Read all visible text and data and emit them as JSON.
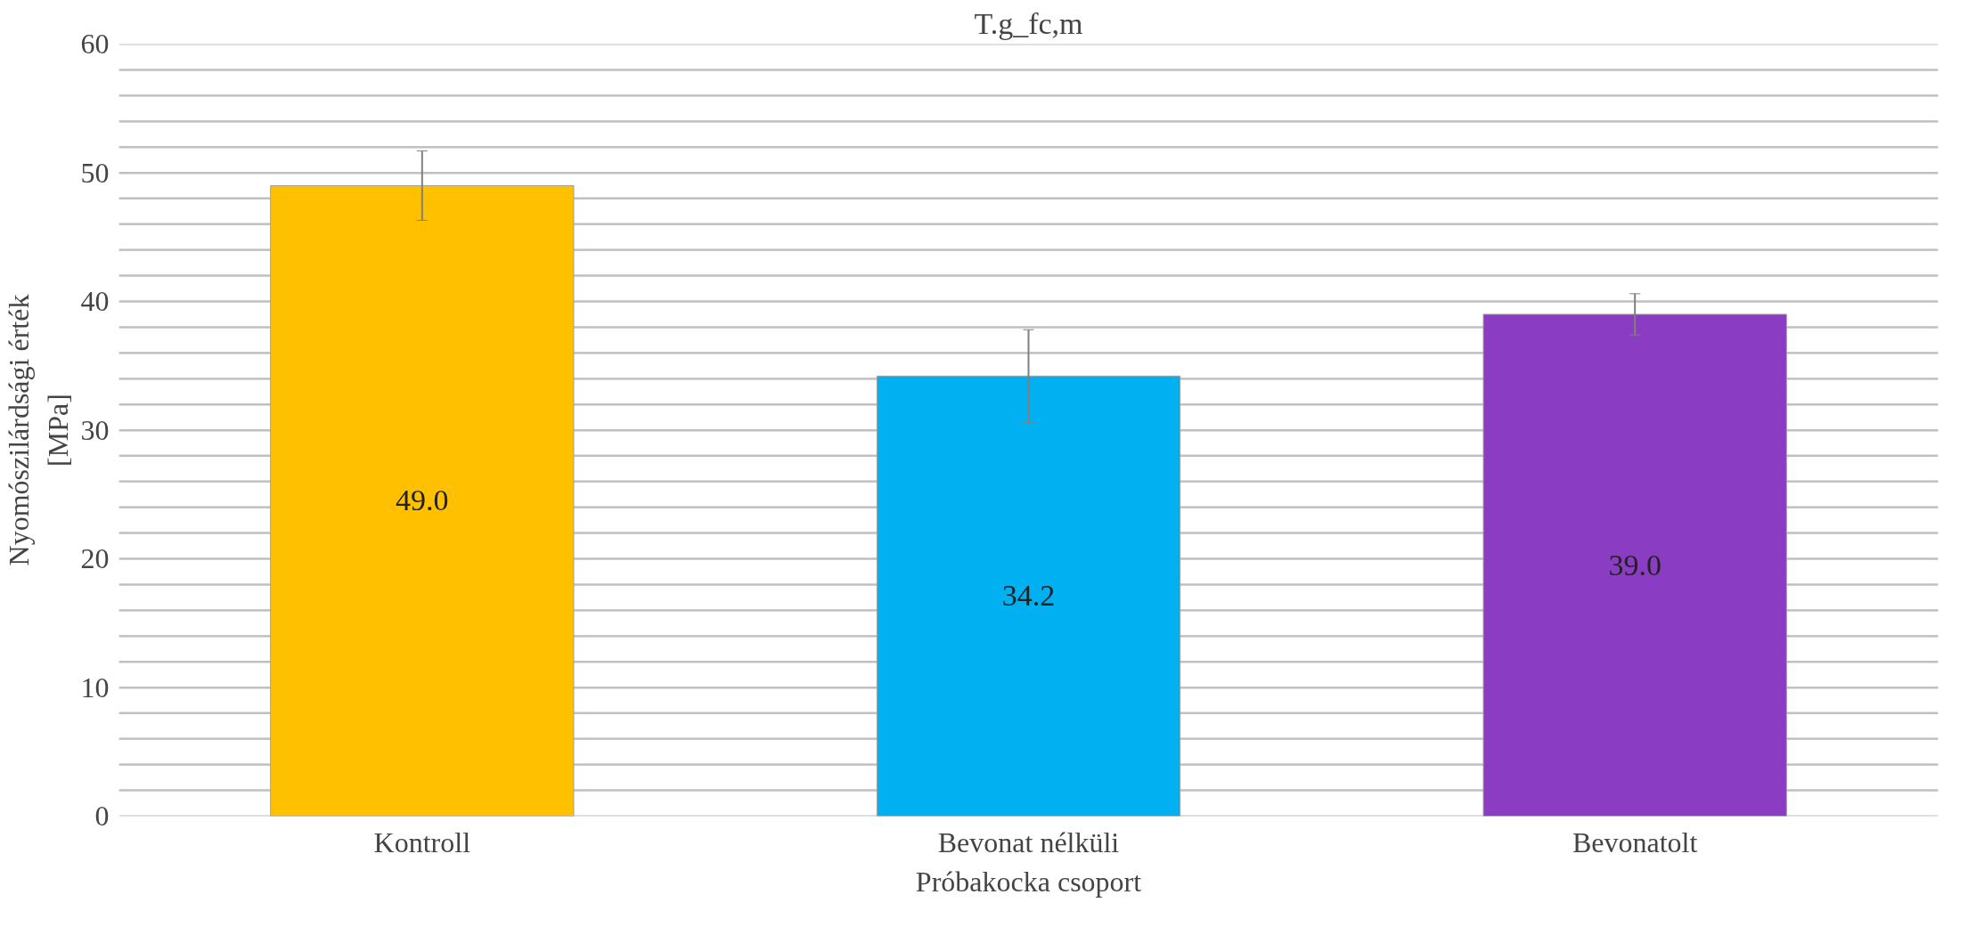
{
  "chart_data": {
    "type": "bar",
    "title": "T.g_fc,m",
    "xlabel": "Próbakocka csoport",
    "ylabel": "Nyomószilárdsági érték\n[MPa]",
    "categories": [
      "Kontroll",
      "Bevonat nélküli",
      "Bevonatolt"
    ],
    "values": [
      49.0,
      34.2,
      39.0
    ],
    "colors": [
      "#ffc000",
      "#00b0f0",
      "#8a3cc2"
    ],
    "errors": [
      2.7,
      3.6,
      1.6
    ],
    "value_labels": [
      "49.0",
      "34.2",
      "39.0"
    ],
    "ylim": [
      0,
      60
    ],
    "yticks": [
      0,
      {
        "value": 2,
        "label": null
      },
      {
        "value": 4,
        "label": null
      },
      {
        "value": 6,
        "label": null
      },
      {
        "value": 8,
        "label": null
      },
      10,
      {
        "value": 12,
        "label": null
      },
      {
        "value": 14,
        "label": null
      },
      {
        "value": 16,
        "label": null
      },
      {
        "value": 18,
        "label": null
      },
      20,
      {
        "value": 22,
        "label": null
      },
      {
        "value": 24,
        "label": null
      },
      {
        "value": 26,
        "label": null
      },
      {
        "value": 28,
        "label": null
      },
      30,
      {
        "value": 32,
        "label": null
      },
      {
        "value": 34,
        "label": null
      },
      {
        "value": 36,
        "label": null
      },
      {
        "value": 38,
        "label": null
      },
      40,
      {
        "value": 42,
        "label": null
      },
      {
        "value": 44,
        "label": null
      },
      {
        "value": 46,
        "label": null
      },
      {
        "value": 48,
        "label": null
      },
      50,
      {
        "value": 52,
        "label": null
      },
      {
        "value": 54,
        "label": null
      },
      {
        "value": 56,
        "label": null
      },
      {
        "value": 58,
        "label": null
      },
      60
    ],
    "grid": "y"
  }
}
